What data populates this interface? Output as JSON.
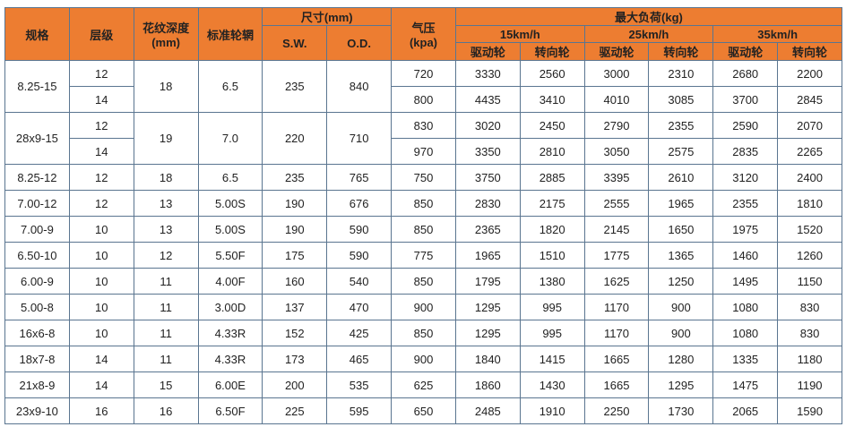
{
  "header": {
    "spec": "规格",
    "ply": "层级",
    "tread_depth": "花纹深度\n(mm)",
    "tread_depth_l1": "花纹深度",
    "tread_depth_l2": "(mm)",
    "rim": "标准轮辋",
    "size": "尺寸(mm)",
    "sw": "S.W.",
    "od": "O.D.",
    "pressure_l1": "气压",
    "pressure_l2": "(kpa)",
    "max_load": "最大负荷(kg)",
    "speeds": [
      "15km/h",
      "25km/h",
      "35km/h"
    ],
    "drive": "驱动轮",
    "steer": "转向轮"
  },
  "rows": [
    {
      "spec": "8.25-15",
      "depth": "18",
      "rim": "6.5",
      "sw": "235",
      "od": "840",
      "sub": [
        {
          "ply": "12",
          "kpa": "720",
          "loads": [
            "3330",
            "2560",
            "3000",
            "2310",
            "2680",
            "2200"
          ]
        },
        {
          "ply": "14",
          "kpa": "800",
          "loads": [
            "4435",
            "3410",
            "4010",
            "3085",
            "3700",
            "2845"
          ]
        }
      ]
    },
    {
      "spec": "28x9-15",
      "depth": "19",
      "rim": "7.0",
      "sw": "220",
      "od": "710",
      "sub": [
        {
          "ply": "12",
          "kpa": "830",
          "loads": [
            "3020",
            "2450",
            "2790",
            "2355",
            "2590",
            "2070"
          ]
        },
        {
          "ply": "14",
          "kpa": "970",
          "loads": [
            "3350",
            "2810",
            "3050",
            "2575",
            "2835",
            "2265"
          ]
        }
      ]
    },
    {
      "spec": "8.25-12",
      "depth": "18",
      "rim": "6.5",
      "sw": "235",
      "od": "765",
      "sub": [
        {
          "ply": "12",
          "kpa": "750",
          "loads": [
            "3750",
            "2885",
            "3395",
            "2610",
            "3120",
            "2400"
          ]
        }
      ]
    },
    {
      "spec": "7.00-12",
      "depth": "13",
      "rim": "5.00S",
      "sw": "190",
      "od": "676",
      "sub": [
        {
          "ply": "12",
          "kpa": "850",
          "loads": [
            "2830",
            "2175",
            "2555",
            "1965",
            "2355",
            "1810"
          ]
        }
      ]
    },
    {
      "spec": "7.00-9",
      "depth": "13",
      "rim": "5.00S",
      "sw": "190",
      "od": "590",
      "sub": [
        {
          "ply": "10",
          "kpa": "850",
          "loads": [
            "2365",
            "1820",
            "2145",
            "1650",
            "1975",
            "1520"
          ]
        }
      ]
    },
    {
      "spec": "6.50-10",
      "depth": "12",
      "rim": "5.50F",
      "sw": "175",
      "od": "590",
      "sub": [
        {
          "ply": "10",
          "kpa": "775",
          "loads": [
            "1965",
            "1510",
            "1775",
            "1365",
            "1460",
            "1260"
          ]
        }
      ]
    },
    {
      "spec": "6.00-9",
      "depth": "11",
      "rim": "4.00F",
      "sw": "160",
      "od": "540",
      "sub": [
        {
          "ply": "10",
          "kpa": "850",
          "loads": [
            "1795",
            "1380",
            "1625",
            "1250",
            "1495",
            "1150"
          ]
        }
      ]
    },
    {
      "spec": "5.00-8",
      "depth": "11",
      "rim": "3.00D",
      "sw": "137",
      "od": "470",
      "sub": [
        {
          "ply": "10",
          "kpa": "900",
          "loads": [
            "1295",
            "995",
            "1170",
            "900",
            "1080",
            "830"
          ]
        }
      ]
    },
    {
      "spec": "16x6-8",
      "depth": "11",
      "rim": "4.33R",
      "sw": "152",
      "od": "425",
      "sub": [
        {
          "ply": "10",
          "kpa": "850",
          "loads": [
            "1295",
            "995",
            "1170",
            "900",
            "1080",
            "830"
          ]
        }
      ]
    },
    {
      "spec": "18x7-8",
      "depth": "11",
      "rim": "4.33R",
      "sw": "173",
      "od": "465",
      "sub": [
        {
          "ply": "14",
          "kpa": "900",
          "loads": [
            "1840",
            "1415",
            "1665",
            "1280",
            "1335",
            "1180"
          ]
        }
      ]
    },
    {
      "spec": "21x8-9",
      "depth": "15",
      "rim": "6.00E",
      "sw": "200",
      "od": "535",
      "sub": [
        {
          "ply": "14",
          "kpa": "625",
          "loads": [
            "1860",
            "1430",
            "1665",
            "1295",
            "1475",
            "1190"
          ]
        }
      ]
    },
    {
      "spec": "23x9-10",
      "depth": "16",
      "rim": "6.50F",
      "sw": "225",
      "od": "595",
      "sub": [
        {
          "ply": "16",
          "kpa": "650",
          "loads": [
            "2485",
            "1910",
            "2250",
            "1730",
            "2065",
            "1590"
          ]
        }
      ]
    }
  ],
  "colors": {
    "header_bg": "#ED7D31",
    "border": "#5a7590"
  }
}
